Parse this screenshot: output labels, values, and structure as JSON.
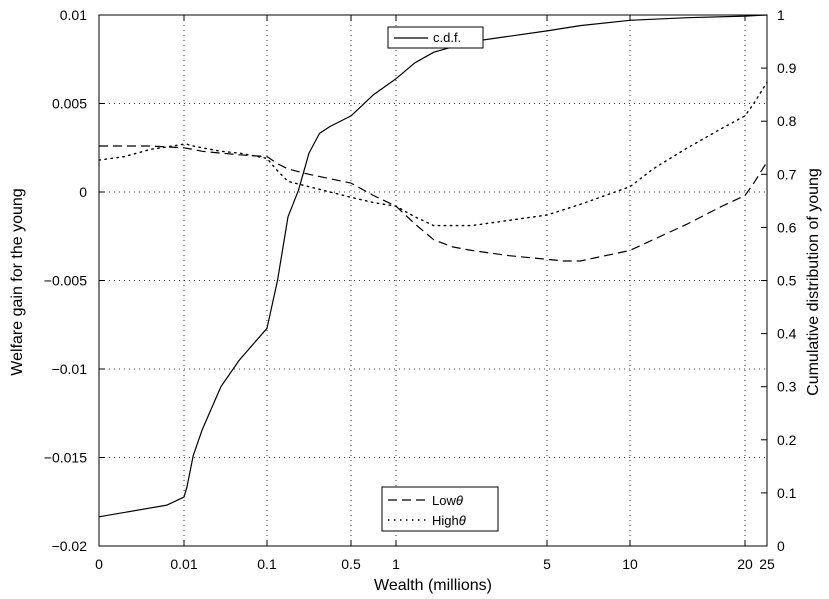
{
  "chart_data": {
    "type": "line",
    "xlabel": "Wealth (millions)",
    "ylabel_left": "Welfare gain for the young",
    "ylabel_right": "Cumulative distribution of young",
    "x_scale": "transformed (axis ticks unevenly spaced)",
    "x_ticks": [
      {
        "value": 0,
        "label": "0"
      },
      {
        "value": 0.01,
        "label": "0.01"
      },
      {
        "value": 0.1,
        "label": "0.1"
      },
      {
        "value": 0.5,
        "label": "0.5"
      },
      {
        "value": 1,
        "label": "1"
      },
      {
        "value": 5,
        "label": "5"
      },
      {
        "value": 10,
        "label": "10"
      },
      {
        "value": 20,
        "label": "20"
      },
      {
        "value": 25,
        "label": "25"
      }
    ],
    "ylim_left": [
      -0.02,
      0.01
    ],
    "yticks_left": [
      "0.01",
      "0.005",
      "0",
      "−0.005",
      "−0.01",
      "−0.015",
      "−0.02"
    ],
    "ylim_right": [
      0,
      1
    ],
    "yticks_right": [
      "1",
      "0.9",
      "0.8",
      "0.7",
      "0.6",
      "0.5",
      "0.4",
      "0.3",
      "0.2",
      "0.1",
      "0"
    ],
    "grid": true,
    "legends": [
      {
        "placement": "top-center",
        "entries": [
          {
            "label": "c.d.f.",
            "style": "solid"
          }
        ]
      },
      {
        "placement": "bottom-center",
        "entries": [
          {
            "prefix": "Low",
            "symbol": "θ",
            "style": "dashed"
          },
          {
            "prefix": "High",
            "symbol": "θ",
            "style": "dotted"
          }
        ]
      }
    ],
    "series": [
      {
        "name": "c.d.f.",
        "axis": "right",
        "style": "solid",
        "points": [
          [
            0,
            0.055
          ],
          [
            0.008,
            0.077
          ],
          [
            0.01,
            0.092
          ],
          [
            0.013,
            0.11
          ],
          [
            0.02,
            0.17
          ],
          [
            0.03,
            0.22
          ],
          [
            0.05,
            0.3
          ],
          [
            0.07,
            0.35
          ],
          [
            0.1,
            0.41
          ],
          [
            0.15,
            0.5
          ],
          [
            0.2,
            0.62
          ],
          [
            0.25,
            0.67
          ],
          [
            0.3,
            0.74
          ],
          [
            0.35,
            0.777
          ],
          [
            0.4,
            0.79
          ],
          [
            0.5,
            0.81
          ],
          [
            0.75,
            0.85
          ],
          [
            1,
            0.88
          ],
          [
            1.5,
            0.91
          ],
          [
            2,
            0.93
          ],
          [
            3,
            0.95
          ],
          [
            5,
            0.97
          ],
          [
            7,
            0.98
          ],
          [
            10,
            0.99
          ],
          [
            15,
            0.995
          ],
          [
            20,
            0.998
          ],
          [
            25,
            1.0
          ]
        ]
      },
      {
        "name": "Low θ",
        "axis": "left",
        "style": "dashed",
        "points": [
          [
            0,
            0.0026
          ],
          [
            0.003,
            0.0026
          ],
          [
            0.006,
            0.0026
          ],
          [
            0.01,
            0.0025
          ],
          [
            0.02,
            0.0024
          ],
          [
            0.03,
            0.0023
          ],
          [
            0.05,
            0.0022
          ],
          [
            0.07,
            0.0021
          ],
          [
            0.1,
            0.002
          ],
          [
            0.15,
            0.0016
          ],
          [
            0.2,
            0.0013
          ],
          [
            0.3,
            0.001
          ],
          [
            0.5,
            0.0005
          ],
          [
            0.75,
            -0.0002
          ],
          [
            1,
            -0.0008
          ],
          [
            1.5,
            -0.0018
          ],
          [
            2,
            -0.0027
          ],
          [
            2.5,
            -0.0031
          ],
          [
            3,
            -0.0033
          ],
          [
            4,
            -0.0036
          ],
          [
            5,
            -0.0038
          ],
          [
            6,
            -0.0039
          ],
          [
            7,
            -0.0039
          ],
          [
            8,
            -0.0037
          ],
          [
            10,
            -0.0033
          ],
          [
            12,
            -0.0027
          ],
          [
            15,
            -0.0018
          ],
          [
            18,
            -0.0008
          ],
          [
            20,
            -0.0002
          ],
          [
            22,
            0.0005
          ],
          [
            25,
            0.0017
          ]
        ]
      },
      {
        "name": "High θ",
        "axis": "left",
        "style": "dotted",
        "points": [
          [
            0,
            0.0018
          ],
          [
            0.003,
            0.002
          ],
          [
            0.006,
            0.0024
          ],
          [
            0.01,
            0.0027
          ],
          [
            0.013,
            0.0027
          ],
          [
            0.02,
            0.0026
          ],
          [
            0.03,
            0.0025
          ],
          [
            0.05,
            0.0023
          ],
          [
            0.07,
            0.0022
          ],
          [
            0.1,
            0.0019
          ],
          [
            0.15,
            0.0012
          ],
          [
            0.2,
            0.0006
          ],
          [
            0.3,
            0.0003
          ],
          [
            0.5,
            -0.0003
          ],
          [
            0.75,
            -0.0006
          ],
          [
            1,
            -0.0008
          ],
          [
            1.5,
            -0.0014
          ],
          [
            2,
            -0.0019
          ],
          [
            3,
            -0.0019
          ],
          [
            4,
            -0.0016
          ],
          [
            5,
            -0.0013
          ],
          [
            7,
            -0.0007
          ],
          [
            10,
            0.0003
          ],
          [
            12,
            0.0013
          ],
          [
            15,
            0.0025
          ],
          [
            18,
            0.0036
          ],
          [
            20,
            0.0043
          ],
          [
            22,
            0.005
          ],
          [
            25,
            0.0062
          ]
        ]
      }
    ]
  }
}
